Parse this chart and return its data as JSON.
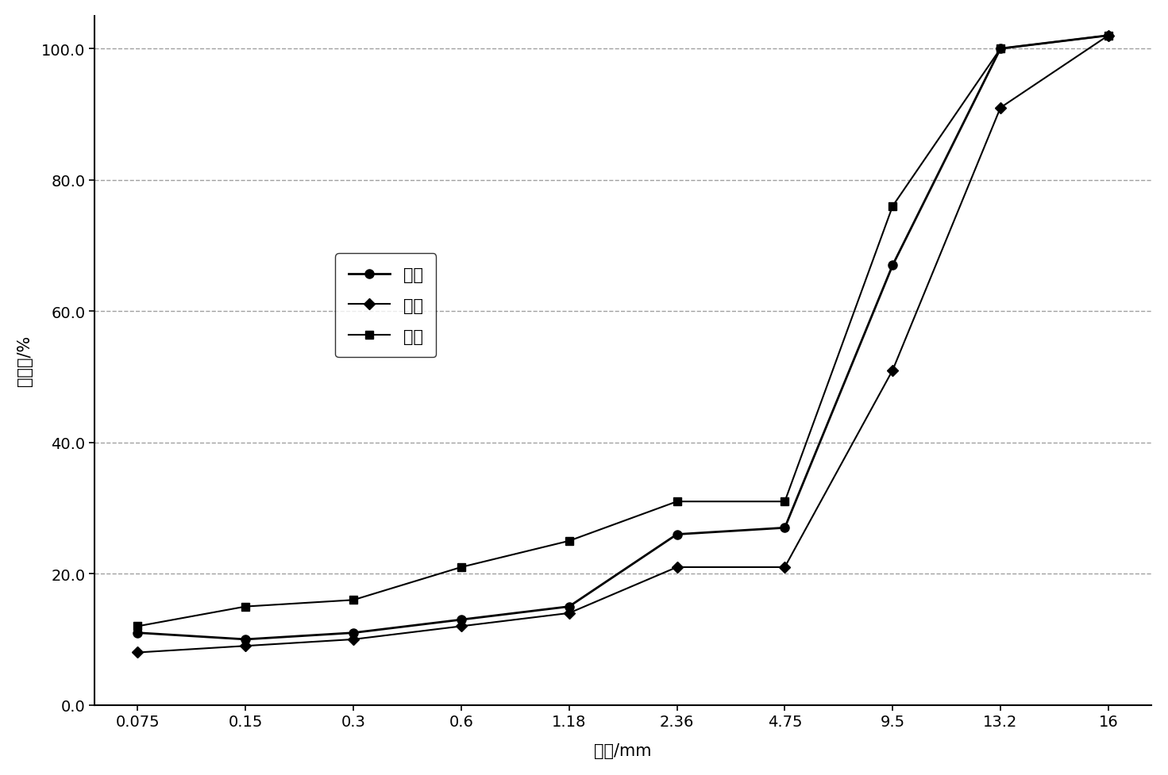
{
  "x_labels": [
    "0.075",
    "0.15",
    "0.3",
    "0.6",
    "1.18",
    "2.36",
    "4.75",
    "9.5",
    "13.2",
    "16"
  ],
  "x_positions": [
    0,
    1,
    2,
    3,
    4,
    5,
    6,
    7,
    8,
    9
  ],
  "series": [
    {
      "name": "试验",
      "values": [
        11.0,
        10.0,
        11.0,
        13.0,
        15.0,
        26.0,
        27.0,
        67.0,
        100.0,
        102.0
      ],
      "marker": "o",
      "color": "#000000",
      "linewidth": 2.0,
      "markersize": 8
    },
    {
      "name": "下限",
      "values": [
        8.0,
        9.0,
        10.0,
        12.0,
        14.0,
        21.0,
        21.0,
        51.0,
        91.0,
        102.0
      ],
      "marker": "D",
      "color": "#000000",
      "linewidth": 1.5,
      "markersize": 7
    },
    {
      "name": "上限",
      "values": [
        12.0,
        15.0,
        16.0,
        21.0,
        25.0,
        31.0,
        31.0,
        76.0,
        100.0,
        102.0
      ],
      "marker": "s",
      "color": "#000000",
      "linewidth": 1.5,
      "markersize": 7
    }
  ],
  "ylabel": "通过率/%",
  "xlabel": "筛孔/mm",
  "ylim": [
    0.0,
    105.0
  ],
  "yticks": [
    0.0,
    20.0,
    40.0,
    60.0,
    80.0,
    100.0
  ],
  "ytick_labels": [
    "0.0",
    "20.0",
    "40.0",
    "60.0",
    "80.0",
    "100.0"
  ],
  "background_color": "#ffffff",
  "grid_color": "#888888",
  "figsize": [
    14.71,
    9.78
  ],
  "dpi": 100
}
